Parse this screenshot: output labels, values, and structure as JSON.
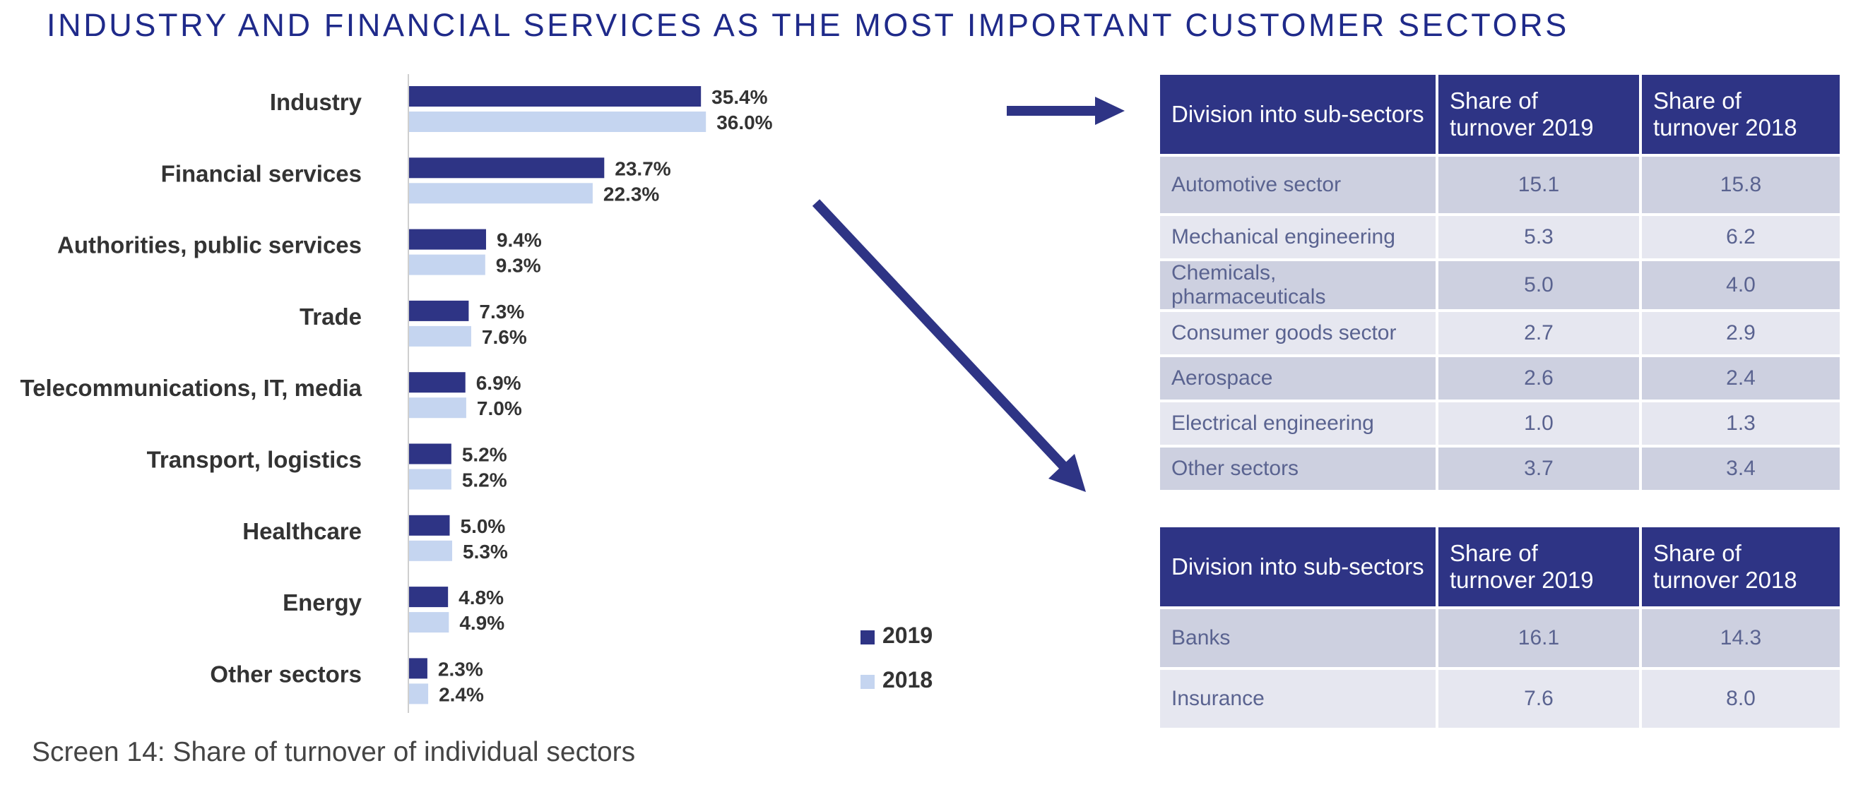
{
  "title": "INDUSTRY AND FINANCIAL SERVICES AS THE MOST IMPORTANT CUSTOMER SECTORS",
  "caption": "Screen 14: Share of turnover of individual sectors",
  "colors": {
    "series_2019": "#2e3485",
    "series_2018": "#c5d5f0",
    "title": "#1f2a8a"
  },
  "chart_data": {
    "type": "bar",
    "orientation": "horizontal",
    "categories": [
      "Industry",
      "Financial services",
      "Authorities, public services",
      "Trade",
      "Telecommunications, IT, media",
      "Transport, logistics",
      "Healthcare",
      "Energy",
      "Other sectors"
    ],
    "series": [
      {
        "name": "2019",
        "values": [
          35.4,
          23.7,
          9.4,
          7.3,
          6.9,
          5.2,
          5.0,
          4.8,
          2.3
        ],
        "labels": [
          "35.4%",
          "23.7%",
          "9.4%",
          "7.3%",
          "6.9%",
          "5.2%",
          "5.0%",
          "4.8%",
          "2.3%"
        ]
      },
      {
        "name": "2018",
        "values": [
          36.0,
          22.3,
          9.3,
          7.6,
          7.0,
          5.2,
          5.3,
          4.9,
          2.4
        ],
        "labels": [
          "36.0%",
          "22.3%",
          "9.3%",
          "7.6%",
          "7.0%",
          "5.2%",
          "5.3%",
          "4.9%",
          "2.4%"
        ]
      }
    ],
    "legend_position": "bottom-right"
  },
  "tables": [
    {
      "headers": [
        "Division into sub-sectors",
        "Share of turnover 2019",
        "Share of turnover 2018"
      ],
      "rows": [
        [
          "Automotive sector",
          "15.1",
          "15.8"
        ],
        [
          "Mechanical engineering",
          "5.3",
          "6.2"
        ],
        [
          "Chemicals, pharmaceuticals",
          "5.0",
          "4.0"
        ],
        [
          "Consumer goods sector",
          "2.7",
          "2.9"
        ],
        [
          "Aerospace",
          "2.6",
          "2.4"
        ],
        [
          "Electrical engineering",
          "1.0",
          "1.3"
        ],
        [
          "Other sectors",
          "3.7",
          "3.4"
        ]
      ]
    },
    {
      "headers": [
        "Division into sub-sectors",
        "Share of turnover 2019",
        "Share of turnover 2018"
      ],
      "rows": [
        [
          "Banks",
          "16.1",
          "14.3"
        ],
        [
          "Insurance",
          "7.6",
          "8.0"
        ]
      ]
    }
  ]
}
